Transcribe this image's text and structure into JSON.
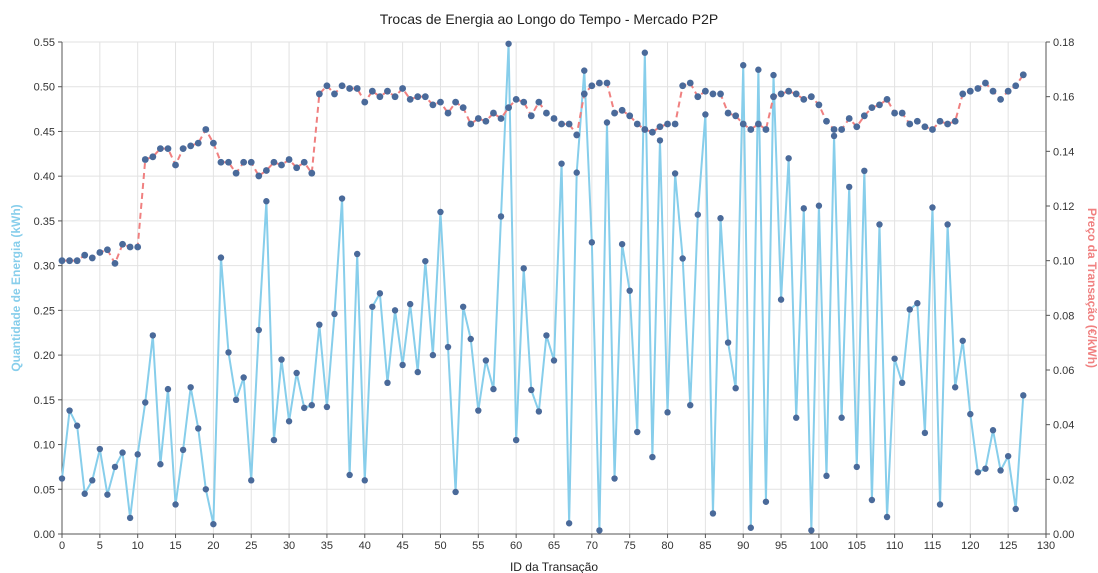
{
  "chart_data": {
    "type": "line",
    "title": "Trocas de Energia ao Longo do Tempo - Mercado P2P",
    "xlabel": "ID da Transação",
    "ylabel_left": "Quantidade de Energia (kWh)",
    "ylabel_right": "Preço da Transação (€/kWh)",
    "xlim": [
      0,
      130
    ],
    "ylim_left": [
      0,
      0.55
    ],
    "ylim_right": [
      0,
      0.18
    ],
    "x_ticks": [
      "0",
      "5",
      "10",
      "15",
      "20",
      "25",
      "30",
      "35",
      "40",
      "45",
      "50",
      "55",
      "60",
      "65",
      "70",
      "75",
      "80",
      "85",
      "90",
      "95",
      "100",
      "105",
      "110",
      "115",
      "120",
      "125",
      "130"
    ],
    "y_left_ticks": [
      "0.00",
      "0.05",
      "0.10",
      "0.15",
      "0.20",
      "0.25",
      "0.30",
      "0.35",
      "0.40",
      "0.45",
      "0.50",
      "0.55"
    ],
    "y_right_ticks": [
      "0.00",
      "0.02",
      "0.04",
      "0.06",
      "0.08",
      "0.10",
      "0.12",
      "0.14",
      "0.16",
      "0.18"
    ],
    "grid": true,
    "colors": {
      "energy": "#87ceeb",
      "energy_marker": "#4a6a9a",
      "price_line": "#f08080",
      "price_marker": "#4a6a9a",
      "left_axis_title": "#87ceeb",
      "right_axis_title": "#f08080"
    },
    "series": [
      {
        "axis": "left",
        "values": [
          0.062,
          0.138,
          0.121,
          0.045,
          0.06,
          0.095,
          0.044,
          0.075,
          0.091,
          0.018,
          0.089,
          0.147,
          0.222,
          0.078,
          0.162,
          0.033,
          0.094,
          0.164,
          0.118,
          0.05,
          0.011,
          0.309,
          0.203,
          0.15,
          0.175,
          0.06,
          0.228,
          0.372,
          0.105,
          0.195,
          0.126,
          0.18,
          0.141,
          0.144,
          0.234,
          0.142,
          0.246,
          0.375,
          0.066,
          0.313,
          0.06,
          0.254,
          0.269,
          0.169,
          0.25,
          0.189,
          0.257,
          0.181,
          0.305,
          0.2,
          0.36,
          0.209,
          0.047,
          0.254,
          0.218,
          0.138,
          0.194,
          0.162,
          0.355,
          0.548,
          0.105,
          0.297,
          0.161,
          0.137,
          0.222,
          0.194,
          0.414,
          0.012,
          0.404,
          0.518,
          0.326,
          0.004,
          0.46,
          0.062,
          0.324,
          0.272,
          0.114,
          0.538,
          0.086,
          0.44,
          0.136,
          0.403,
          0.308,
          0.144,
          0.357,
          0.469,
          0.023,
          0.353,
          0.214,
          0.163,
          0.524,
          0.007,
          0.519,
          0.036,
          0.513,
          0.262,
          0.42,
          0.13,
          0.364,
          0.004,
          0.367,
          0.065,
          0.445,
          0.13,
          0.388,
          0.075,
          0.406,
          0.038,
          0.346,
          0.019,
          0.196,
          0.169,
          0.251,
          0.258,
          0.113,
          0.365,
          0.033,
          0.346,
          0.164,
          0.216,
          0.134,
          0.069,
          0.073,
          0.116,
          0.071,
          0.087,
          0.028,
          0.155
        ]
      },
      {
        "axis": "right",
        "values": [
          0.1,
          0.1,
          0.1,
          0.102,
          0.101,
          0.103,
          0.104,
          0.099,
          0.106,
          0.105,
          0.105,
          0.137,
          0.138,
          0.141,
          0.141,
          0.135,
          0.141,
          0.142,
          0.143,
          0.148,
          0.143,
          0.136,
          0.136,
          0.132,
          0.136,
          0.136,
          0.131,
          0.133,
          0.136,
          0.135,
          0.137,
          0.134,
          0.136,
          0.132,
          0.161,
          0.164,
          0.161,
          0.164,
          0.163,
          0.163,
          0.158,
          0.162,
          0.16,
          0.162,
          0.16,
          0.163,
          0.159,
          0.16,
          0.16,
          0.157,
          0.158,
          0.154,
          0.158,
          0.156,
          0.15,
          0.152,
          0.151,
          0.154,
          0.152,
          0.156,
          0.159,
          0.158,
          0.153,
          0.158,
          0.154,
          0.152,
          0.15,
          0.15,
          0.146,
          0.161,
          0.164,
          0.165,
          0.165,
          0.154,
          0.155,
          0.153,
          0.15,
          0.148,
          0.147,
          0.149,
          0.15,
          0.15,
          0.164,
          0.165,
          0.16,
          0.162,
          0.161,
          0.161,
          0.154,
          0.153,
          0.15,
          0.148,
          0.15,
          0.148,
          0.16,
          0.161,
          0.162,
          0.161,
          0.159,
          0.16,
          0.157,
          0.151,
          0.148,
          0.148,
          0.152,
          0.149,
          0.153,
          0.156,
          0.157,
          0.159,
          0.154,
          0.154,
          0.15,
          0.151,
          0.149,
          0.148,
          0.151,
          0.15,
          0.151,
          0.161,
          0.162,
          0.163,
          0.165,
          0.162,
          0.159,
          0.162,
          0.164,
          0.168
        ]
      }
    ]
  }
}
